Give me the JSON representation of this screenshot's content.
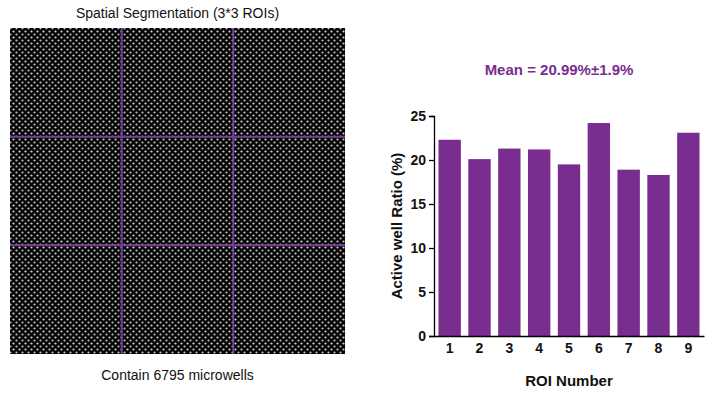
{
  "image_panel": {
    "title": "Spatial Segmentation (3*3 ROIs)",
    "caption": "Contain 6795 microwells"
  },
  "chart_data": {
    "type": "bar",
    "title": "Mean = 20.99%±1.9%",
    "x_label": "ROI Number",
    "y_label": "Active well Ratio (%)",
    "categories": [
      "1",
      "2",
      "3",
      "4",
      "5",
      "6",
      "7",
      "8",
      "9"
    ],
    "values": [
      22.3,
      20.1,
      21.3,
      21.2,
      19.5,
      24.2,
      18.9,
      18.3,
      23.1
    ],
    "color": "#782d8f",
    "ylim": [
      0,
      25
    ],
    "yticks": [
      0,
      5,
      10,
      15,
      20,
      25
    ],
    "grid": false
  }
}
